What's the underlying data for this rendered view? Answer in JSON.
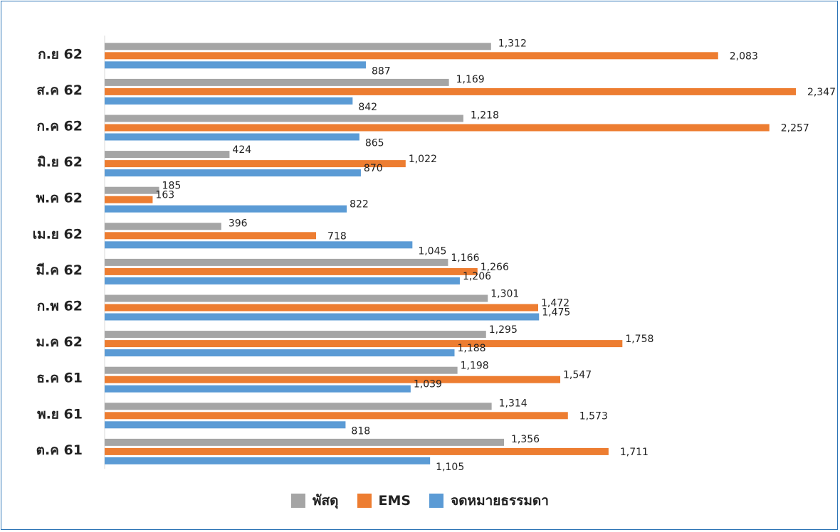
{
  "colors": {
    "parcel": "#a5a5a5",
    "ems": "#ed7d31",
    "mail": "#5b9bd5",
    "axis": "#d9d9d9"
  },
  "legend": [
    {
      "name": "พัสดุ",
      "color": "#a5a5a5"
    },
    {
      "name": "EMS",
      "color": "#ed7d31"
    },
    {
      "name": "จดหมายธรรมดา",
      "color": "#5b9bd5"
    }
  ],
  "chart_data": {
    "type": "bar",
    "orientation": "horizontal",
    "legend_position": "bottom",
    "grid": false,
    "xlim": [
      0,
      2400
    ],
    "categories": [
      "ก.ย 62",
      "ส.ค 62",
      "ก.ค 62",
      "มิ.ย 62",
      "พ.ค 62",
      "เม.ย 62",
      "มี.ค 62",
      "ก.พ 62",
      "ม.ค 62",
      "ธ.ค 61",
      "พ.ย 61",
      "ต.ค 61"
    ],
    "series": [
      {
        "name": "พัสดุ",
        "color": "#a5a5a5",
        "values": [
          1312,
          1169,
          1218,
          424,
          185,
          396,
          1166,
          1301,
          1295,
          1198,
          1314,
          1356
        ],
        "labels": [
          "1,312",
          "1,169",
          "1,218",
          "424",
          "185",
          "396",
          "1,166",
          "1,301",
          "1,295",
          "1,198",
          "1,314",
          "1,356"
        ]
      },
      {
        "name": "EMS",
        "color": "#ed7d31",
        "values": [
          2083,
          2347,
          2257,
          1022,
          163,
          718,
          1266,
          1472,
          1758,
          1547,
          1573,
          1711
        ],
        "labels": [
          "2,083",
          "2,347",
          "2,257",
          "1,022",
          "163",
          "718",
          "1,266",
          "1,472",
          "1,758",
          "1,547",
          "1,573",
          "1,711"
        ]
      },
      {
        "name": "จดหมายธรรมดา",
        "color": "#5b9bd5",
        "values": [
          887,
          842,
          865,
          870,
          822,
          1045,
          1206,
          1475,
          1188,
          1039,
          818,
          1105
        ],
        "labels": [
          "887",
          "842",
          "865",
          "870",
          "822",
          "1,045",
          "1,206",
          "1,475",
          "1,188",
          "1,039",
          "818",
          "1,105"
        ]
      }
    ]
  }
}
